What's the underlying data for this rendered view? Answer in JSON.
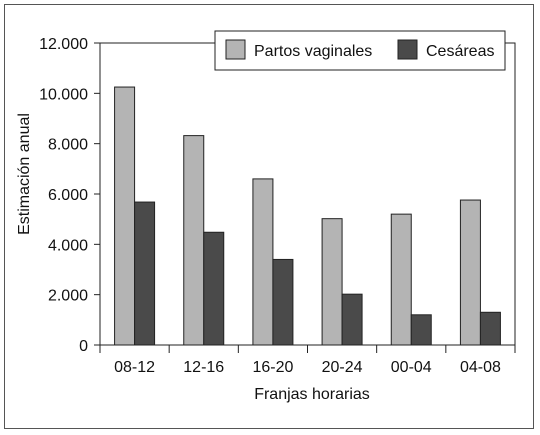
{
  "chart_data": {
    "type": "bar",
    "categories": [
      "08-12",
      "12-16",
      "16-20",
      "20-24",
      "00-04",
      "04-08"
    ],
    "series": [
      {
        "name": "Partos vaginales",
        "values": [
          10250,
          8320,
          6600,
          5020,
          5200,
          5760
        ],
        "color": "#b4b4b4"
      },
      {
        "name": "Cesáreas",
        "values": [
          5680,
          4480,
          3400,
          2020,
          1200,
          1300
        ],
        "color": "#4a4a4a"
      }
    ],
    "xlabel": "Franjas horarias",
    "ylabel": "Estimación anual",
    "ylim": [
      0,
      12000
    ],
    "yticks": [
      0,
      2000,
      4000,
      6000,
      8000,
      10000,
      12000
    ],
    "ytick_labels": [
      "0",
      "2.000",
      "4.000",
      "6.000",
      "8.000",
      "10.000",
      "12.000"
    ],
    "grid": false,
    "legend_position": "top-right"
  }
}
